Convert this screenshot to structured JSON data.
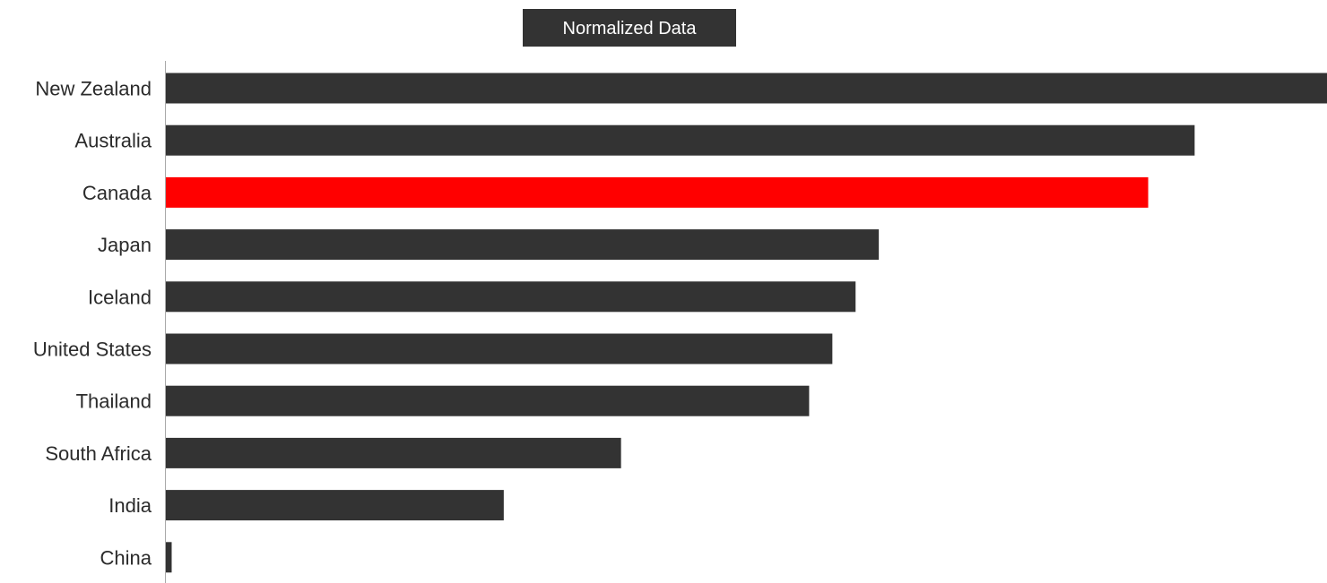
{
  "chart_data": {
    "type": "bar",
    "orientation": "horizontal",
    "title": "Normalized Data",
    "categories": [
      "New Zealand",
      "Australia",
      "Canada",
      "Japan",
      "Iceland",
      "United States",
      "Thailand",
      "South Africa",
      "India",
      "China"
    ],
    "values": [
      1.0,
      0.886,
      0.846,
      0.614,
      0.594,
      0.574,
      0.554,
      0.392,
      0.291,
      0.005
    ],
    "xlim": [
      0,
      1
    ],
    "highlight": "Canada",
    "colors": {
      "default_bar": "#333333",
      "highlight_bar": "#ff0000",
      "title_bg": "#333333",
      "axis": "#aaaaaa"
    },
    "grid": false,
    "legend": "none"
  }
}
